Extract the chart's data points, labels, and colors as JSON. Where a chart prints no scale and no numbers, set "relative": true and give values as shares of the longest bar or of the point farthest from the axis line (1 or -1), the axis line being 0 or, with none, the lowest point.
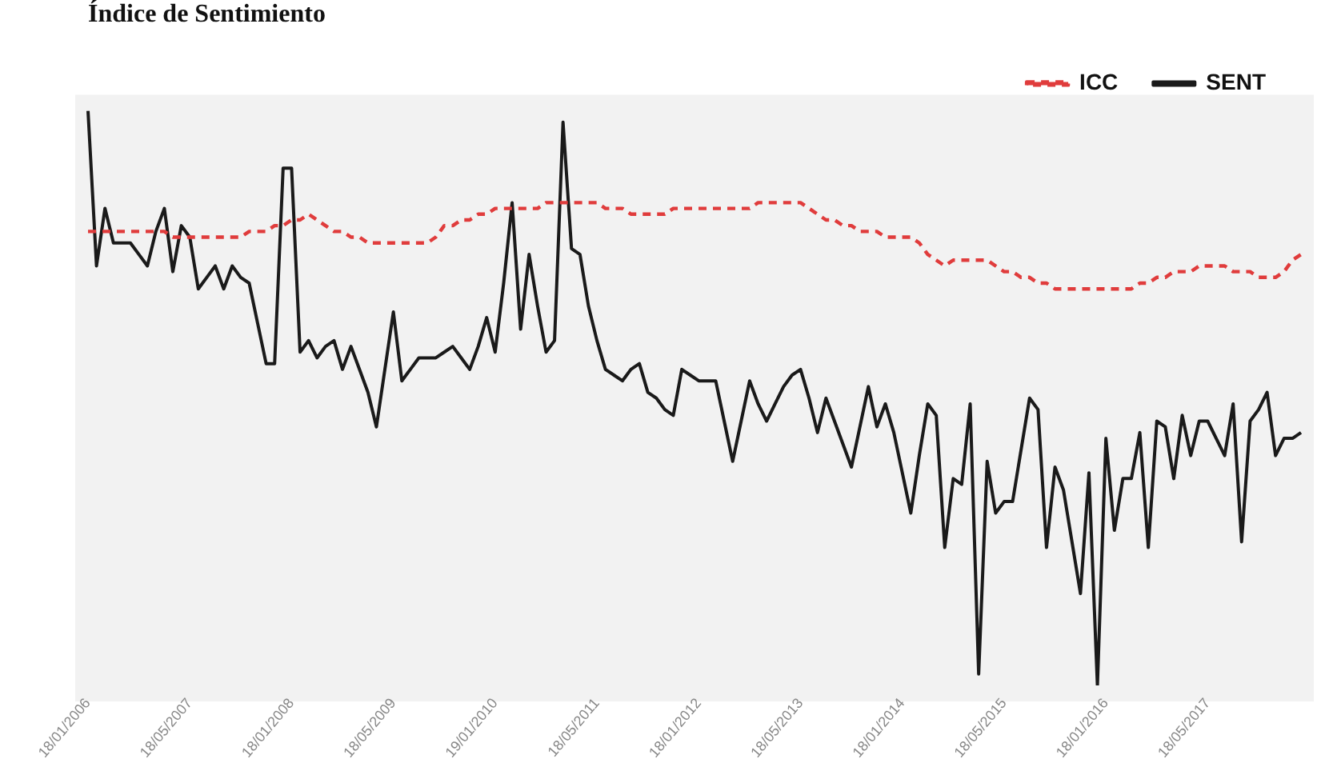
{
  "chart_data": {
    "type": "line",
    "title": "Índice de Sentimiento",
    "relative": true,
    "legend": "top right",
    "grid": false,
    "categories": [
      "18/01/2006",
      null,
      null,
      null,
      null,
      null,
      null,
      null,
      null,
      null,
      null,
      null,
      "18/05/2007",
      null,
      null,
      null,
      null,
      null,
      null,
      null,
      null,
      null,
      null,
      null,
      "18/01/2008",
      null,
      null,
      null,
      null,
      null,
      null,
      null,
      null,
      null,
      null,
      null,
      "18/05/2009",
      null,
      null,
      null,
      null,
      null,
      null,
      null,
      null,
      null,
      null,
      null,
      "19/01/2010",
      null,
      null,
      null,
      null,
      null,
      null,
      null,
      null,
      null,
      null,
      null,
      "18/05/2011",
      null,
      null,
      null,
      null,
      null,
      null,
      null,
      null,
      null,
      null,
      null,
      "18/01/2012",
      null,
      null,
      null,
      null,
      null,
      null,
      null,
      null,
      null,
      null,
      null,
      "18/05/2013",
      null,
      null,
      null,
      null,
      null,
      null,
      null,
      null,
      null,
      null,
      null,
      "18/01/2014",
      null,
      null,
      null,
      null,
      null,
      null,
      null,
      null,
      null,
      null,
      null,
      "18/05/2015",
      null,
      null,
      null,
      null,
      null,
      null,
      null,
      null,
      null,
      null,
      null,
      "18/01/2016",
      null,
      null,
      null,
      null,
      null,
      null,
      null,
      null,
      null,
      null,
      null,
      "18/05/2017",
      null,
      null,
      null,
      null,
      null,
      null,
      null,
      null,
      null,
      null,
      null
    ],
    "series": [
      {
        "name": "ICC",
        "color": "#e03c3c",
        "line_style": "dashed",
        "values": [
          0.79,
          0.79,
          0.79,
          0.79,
          0.79,
          0.79,
          0.79,
          0.79,
          0.79,
          0.79,
          0.78,
          0.78,
          0.78,
          0.78,
          0.78,
          0.78,
          0.78,
          0.78,
          0.78,
          0.79,
          0.79,
          0.79,
          0.8,
          0.8,
          0.81,
          0.81,
          0.82,
          0.81,
          0.8,
          0.79,
          0.79,
          0.78,
          0.78,
          0.77,
          0.77,
          0.77,
          0.77,
          0.77,
          0.77,
          0.77,
          0.77,
          0.78,
          0.8,
          0.8,
          0.81,
          0.81,
          0.82,
          0.82,
          0.83,
          0.83,
          0.83,
          0.83,
          0.83,
          0.83,
          0.84,
          0.84,
          0.84,
          0.84,
          0.84,
          0.84,
          0.84,
          0.83,
          0.83,
          0.83,
          0.82,
          0.82,
          0.82,
          0.82,
          0.82,
          0.83,
          0.83,
          0.83,
          0.83,
          0.83,
          0.83,
          0.83,
          0.83,
          0.83,
          0.83,
          0.84,
          0.84,
          0.84,
          0.84,
          0.84,
          0.84,
          0.83,
          0.82,
          0.81,
          0.81,
          0.8,
          0.8,
          0.79,
          0.79,
          0.79,
          0.78,
          0.78,
          0.78,
          0.78,
          0.77,
          0.75,
          0.74,
          0.73,
          0.74,
          0.74,
          0.74,
          0.74,
          0.74,
          0.73,
          0.72,
          0.72,
          0.71,
          0.71,
          0.7,
          0.7,
          0.69,
          0.69,
          0.69,
          0.69,
          0.69,
          0.69,
          0.69,
          0.69,
          0.69,
          0.69,
          0.7,
          0.7,
          0.71,
          0.71,
          0.72,
          0.72,
          0.72,
          0.73,
          0.73,
          0.73,
          0.73,
          0.72,
          0.72,
          0.72,
          0.71,
          0.71,
          0.71,
          0.72,
          0.74,
          0.75
        ]
      },
      {
        "name": "SENT",
        "color": "#1a1a1a",
        "line_style": "solid",
        "values": [
          1.0,
          0.73,
          0.83,
          0.77,
          0.77,
          0.77,
          0.75,
          0.73,
          0.79,
          0.83,
          0.72,
          0.8,
          0.78,
          0.69,
          0.71,
          0.73,
          0.69,
          0.73,
          0.71,
          0.7,
          0.63,
          0.56,
          0.56,
          0.9,
          0.9,
          0.58,
          0.6,
          0.57,
          0.59,
          0.6,
          0.55,
          0.59,
          0.55,
          0.51,
          0.45,
          0.55,
          0.65,
          0.53,
          0.55,
          0.57,
          0.57,
          0.57,
          0.58,
          0.59,
          0.57,
          0.55,
          0.59,
          0.64,
          0.58,
          0.7,
          0.84,
          0.62,
          0.75,
          0.66,
          0.58,
          0.6,
          0.98,
          0.76,
          0.75,
          0.66,
          0.6,
          0.55,
          0.54,
          0.53,
          0.55,
          0.56,
          0.51,
          0.5,
          0.48,
          0.47,
          0.55,
          0.54,
          0.53,
          0.53,
          0.53,
          0.46,
          0.39,
          0.46,
          0.53,
          0.49,
          0.46,
          0.49,
          0.52,
          0.54,
          0.55,
          0.5,
          0.44,
          0.5,
          0.46,
          0.42,
          0.38,
          0.45,
          0.52,
          0.45,
          0.49,
          0.44,
          0.37,
          0.3,
          0.4,
          0.49,
          0.47,
          0.24,
          0.36,
          0.35,
          0.49,
          0.02,
          0.39,
          0.3,
          0.32,
          0.32,
          0.41,
          0.5,
          0.48,
          0.24,
          0.38,
          0.34,
          0.25,
          0.16,
          0.37,
          0,
          0.43,
          0.27,
          0.36,
          0.36,
          0.44,
          0.24,
          0.46,
          0.45,
          0.36,
          0.47,
          0.4,
          0.46,
          0.46,
          0.43,
          0.4,
          0.49,
          0.25,
          0.46,
          0.48,
          0.51,
          0.4,
          0.43,
          0.43,
          0.44
        ]
      }
    ]
  }
}
